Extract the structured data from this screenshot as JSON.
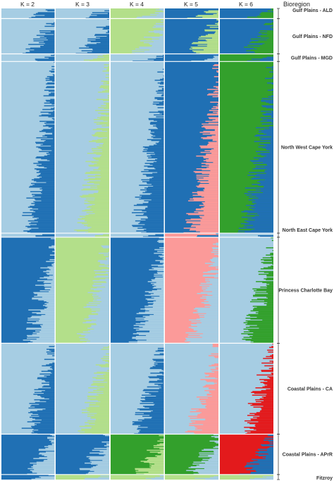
{
  "chart_data": {
    "type": "structure-admixture",
    "title": "",
    "region_header": "Bioregion",
    "panels": [
      {
        "label": "K = 2",
        "k": 2
      },
      {
        "label": "K = 3",
        "k": 3
      },
      {
        "label": "K = 4",
        "k": 4
      },
      {
        "label": "K = 5",
        "k": 5
      },
      {
        "label": "K = 6",
        "k": 6
      }
    ],
    "cluster_colors": {
      "light_blue": "#a6cde3",
      "dark_blue": "#2070b4",
      "light_green": "#b3df8a",
      "green": "#33a02c",
      "pink": "#fb9a99",
      "red": "#e31a1c"
    },
    "regions": [
      {
        "name": "Gulf Plains - ALD",
        "weight": 2,
        "dominant": [
          "light_blue",
          "light_blue",
          "light_green",
          "dark_blue",
          "dark_blue"
        ],
        "secondary": [
          "dark_blue",
          "dark_blue",
          "light_blue",
          "light_green",
          "green"
        ]
      },
      {
        "name": "Gulf Plains - NFD",
        "weight": 7,
        "dominant": [
          "light_blue",
          "light_blue",
          "light_green",
          "dark_blue",
          "dark_blue"
        ],
        "secondary": [
          "dark_blue",
          "dark_blue",
          "light_blue",
          "light_green",
          "green"
        ]
      },
      {
        "name": "Gulf Plains - MGD",
        "weight": 1.5,
        "dominant": [
          "light_blue",
          "light_blue",
          "light_blue",
          "dark_blue",
          "green"
        ],
        "secondary": [
          "dark_blue",
          "light_green",
          "dark_blue",
          "light_blue",
          "dark_blue"
        ]
      },
      {
        "name": "North West Cape York",
        "weight": 34,
        "dominant": [
          "light_blue",
          "light_blue",
          "light_blue",
          "dark_blue",
          "green"
        ],
        "secondary": [
          "dark_blue",
          "light_green",
          "dark_blue",
          "pink",
          "dark_blue"
        ]
      },
      {
        "name": "North East Cape York",
        "weight": 0.8,
        "dominant": [
          "light_blue",
          "light_blue",
          "light_blue",
          "pink",
          "light_blue"
        ],
        "secondary": [
          "dark_blue",
          "light_green",
          "dark_blue",
          "dark_blue",
          "dark_blue"
        ]
      },
      {
        "name": "Princess Charlotte Bay",
        "weight": 21,
        "dominant": [
          "dark_blue",
          "light_green",
          "dark_blue",
          "pink",
          "light_blue"
        ],
        "secondary": [
          "light_blue",
          "light_blue",
          "light_blue",
          "light_blue",
          "green"
        ]
      },
      {
        "name": "Coastal Plains - CA",
        "weight": 18,
        "dominant": [
          "light_blue",
          "light_blue",
          "light_blue",
          "light_blue",
          "light_blue"
        ],
        "secondary": [
          "dark_blue",
          "light_green",
          "dark_blue",
          "pink",
          "red"
        ]
      },
      {
        "name": "Coastal Plains - APrR",
        "weight": 8,
        "dominant": [
          "dark_blue",
          "dark_blue",
          "green",
          "green",
          "red"
        ],
        "secondary": [
          "light_blue",
          "light_blue",
          "light_green",
          "light_blue",
          "dark_blue"
        ]
      },
      {
        "name": "Fitzroy",
        "weight": 1,
        "dominant": [
          "dark_blue",
          "light_green",
          "light_green",
          "light_green",
          "light_green"
        ],
        "secondary": [
          "light_blue",
          "light_blue",
          "light_blue",
          "light_blue",
          "light_blue"
        ]
      }
    ],
    "grid": false,
    "legend": "none"
  }
}
